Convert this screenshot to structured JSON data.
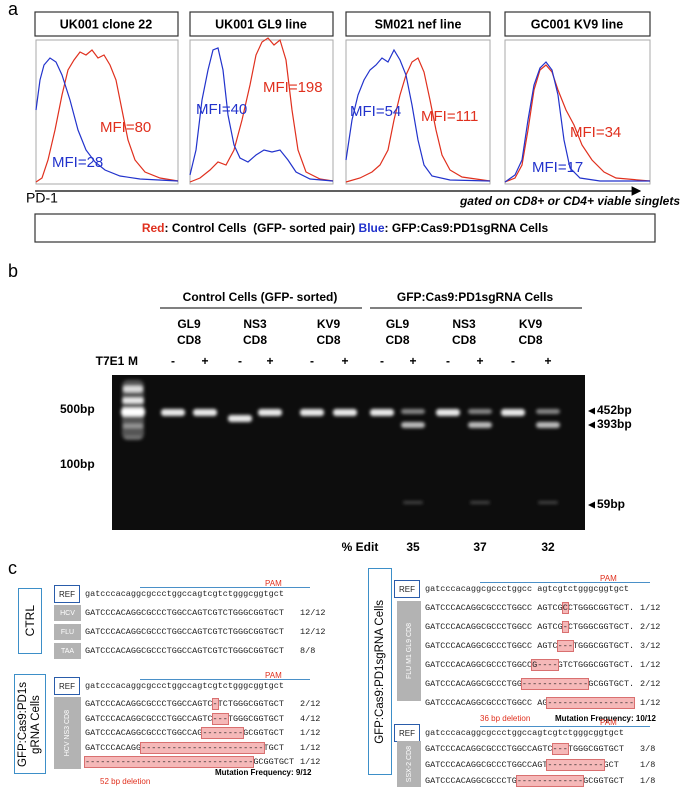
{
  "panel_a": {
    "label": "a",
    "histograms": [
      {
        "title": "UK001 clone 22",
        "red_label": "MFI=80",
        "blue_label": "MFI=28"
      },
      {
        "title": "UK001 GL9 line",
        "red_label": "MFI=198",
        "blue_label": "MFI=40"
      },
      {
        "title": "SM021 nef line",
        "red_label": "MFI=111",
        "blue_label": "MFI=54"
      },
      {
        "title": "GC001 KV9 line",
        "red_label": "MFI=34",
        "blue_label": "MFI=17"
      }
    ],
    "x_axis": "PD-1",
    "gating": "gated on CD8+ or CD4+ viable singlets",
    "legend": {
      "red": "Red",
      "red_text": ": Control Cells  (GFP- sorted pair) ",
      "blue": "Blue",
      "blue_text": ": GFP:Cas9:PD1sgRNA Cells"
    }
  },
  "panel_b": {
    "label": "b",
    "groups": [
      "Control Cells (GFP- sorted)",
      "GFP:Cas9:PD1sgRNA Cells"
    ],
    "lanes": [
      {
        "name": "GL9",
        "cell": "CD8"
      },
      {
        "name": "NS3",
        "cell": "CD8"
      },
      {
        "name": "KV9",
        "cell": "CD8"
      },
      {
        "name": "GL9",
        "cell": "CD8"
      },
      {
        "name": "NS3",
        "cell": "CD8"
      },
      {
        "name": "KV9",
        "cell": "CD8"
      }
    ],
    "enzyme": "T7E1",
    "marker": "M",
    "treatments": [
      "-",
      "+"
    ],
    "ladder": [
      "500bp",
      "100bp"
    ],
    "bands": [
      "452bp",
      "393bp",
      "59bp"
    ],
    "edit_label": "% Edit",
    "edits": [
      35,
      37,
      32
    ]
  },
  "panel_c": {
    "label": "c",
    "ref_label": "REF",
    "pam": "PAM",
    "ctrl": {
      "title": "CTRL",
      "ref": "gatcccacaggcgccctggccagtcgtctgggcggtgct",
      "rows": [
        {
          "label": "HCV",
          "seq": "GATCCCACAGGCGCCCTGGCCAGTCGTCTGGGCGGTGCT",
          "freq": "12/12"
        },
        {
          "label": "FLU",
          "seq": "GATCCCACAGGCGCCCTGGCCAGTCGTCTGGGCGGTGCT",
          "freq": "12/12"
        },
        {
          "label": "TAA",
          "seq": "GATCCCACAGGCGCCCTGGCCAGTCGTCTGGGCGGTGCT",
          "freq": "8/8"
        }
      ]
    },
    "edited_left": {
      "title_lines": [
        "GFP:Cas9:PD1s",
        "gRNA Cells"
      ],
      "ref": "gatcccacaggcgccctggccagtcgtctgggcggtgct",
      "sample": "HCV NS3 CD8",
      "rows": [
        {
          "pre": "GATCCCACAGGCGCCCTGGCCAGTC",
          "del": "-",
          "post": "TCTGGGCGGTGCT",
          "freq": "2/12"
        },
        {
          "pre": "GATCCCACAGGCGCCCTGGCCAGTC",
          "del": "---",
          "post": "TGGGCGGTGCT",
          "freq": "4/12"
        },
        {
          "pre": "GATCCCACAGGCGCCCTGGCCAG",
          "del": "--------",
          "post": "GCGGTGCT",
          "freq": "1/12"
        },
        {
          "pre": "GATCCCACAGG",
          "del": "------------------------",
          "post": "TGCT",
          "freq": "1/12"
        },
        {
          "del": "---------------------------------",
          "post": "GCGGTGCT",
          "freq": "1/12"
        }
      ],
      "deletion": "52 bp deletion",
      "frequency": "Mutation Frequency: 9/12"
    },
    "edited_right": {
      "title": "GFP:Cas9:PD1sgRNA Cells",
      "blocks": [
        {
          "ref": "gatcccacaggcgccctggcc agtcgtctgggcggtgct",
          "sample": "FLU M1 GL9 CD8",
          "rows": [
            {
              "pre": "GATCCCACAGGCGCCCTGGCC AGTCG",
              "del": "C",
              "post": "CTGGGCGGTGCT.",
              "freq": "1/12"
            },
            {
              "pre": "GATCCCACAGGCGCCCTGGCC AGTCG",
              "del": "-",
              "post": "CTGGGCGGTGCT.",
              "freq": "2/12"
            },
            {
              "pre": "GATCCCACAGGCGCCCTGGCC AGTC",
              "del": "---",
              "post": "TGGGCGGTGCT.",
              "freq": "3/12"
            },
            {
              "pre": "GATCCCACAGGCGCCCTGGCC",
              "del": "G----",
              "post": "GTCTGGGCGGTGCT.",
              "freq": "1/12"
            },
            {
              "pre": "GATCCCACAGGCGCCCTGG",
              "del": "-------------",
              "post": "GCGGTGCT.",
              "freq": "2/12"
            },
            {
              "pre": "GATCCCACAGGCGCCCTGGCC AG",
              "del": "-----------------",
              "freq": "1/12"
            }
          ],
          "deletion": "36 bp deletion",
          "frequency": "Mutation Frequency: 10/12"
        },
        {
          "ref": "gatcccacaggcgccctggccagtcgtctgggcggtgct",
          "sample": "SSX-2 CD8",
          "rows": [
            {
              "pre": "GATCCCACAGGCGCCCTGGCCAGTC",
              "del": "---",
              "post": "TGGGCGGTGCT",
              "freq": "3/8"
            },
            {
              "pre": "GATCCCACAGGCGCCCTGGCCAGT",
              "del": "-----------",
              "post": "GCT",
              "freq": "1/8"
            },
            {
              "pre": "GATCCCACAGGCGCCCTG",
              "del": "-------------",
              "post": "GCGGTGCT",
              "freq": "1/8"
            }
          ]
        }
      ]
    }
  }
}
